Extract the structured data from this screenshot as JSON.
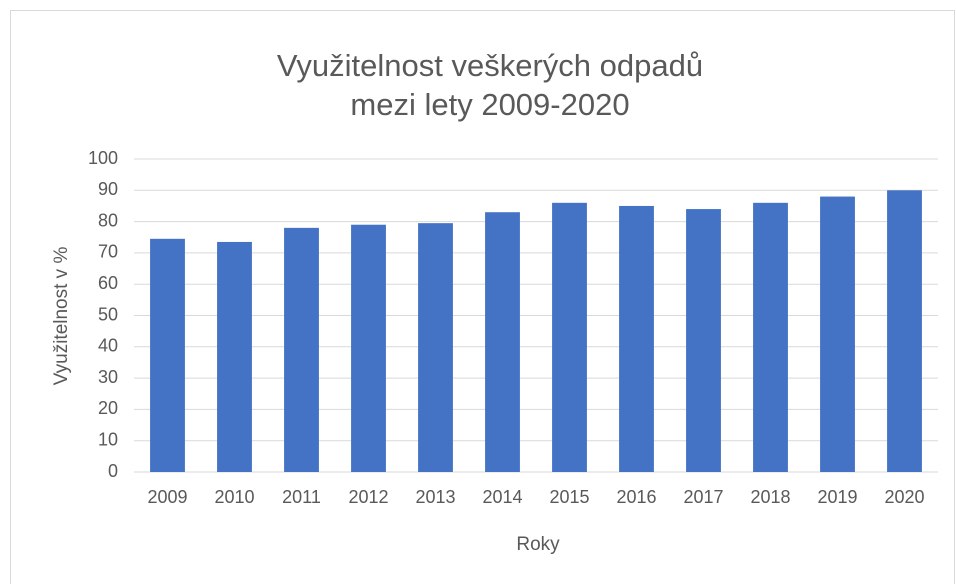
{
  "chart_data": {
    "type": "bar",
    "title": [
      "Využitelnost veškerých odpadů",
      "mezi lety 2009-2020"
    ],
    "x_label": "Roky",
    "y_label": "Využitelnost v %",
    "categories": [
      "2009",
      "2010",
      "2011",
      "2012",
      "2013",
      "2014",
      "2015",
      "2016",
      "2017",
      "2018",
      "2019",
      "2020"
    ],
    "values": [
      74.5,
      73.5,
      78,
      79,
      79.5,
      83,
      86,
      85,
      84,
      86,
      88,
      90
    ],
    "color": "#4472c4",
    "ylim": [
      0,
      100
    ],
    "yticks": [
      0,
      10,
      20,
      30,
      40,
      50,
      60,
      70,
      80,
      90,
      100
    ],
    "grid": true
  }
}
